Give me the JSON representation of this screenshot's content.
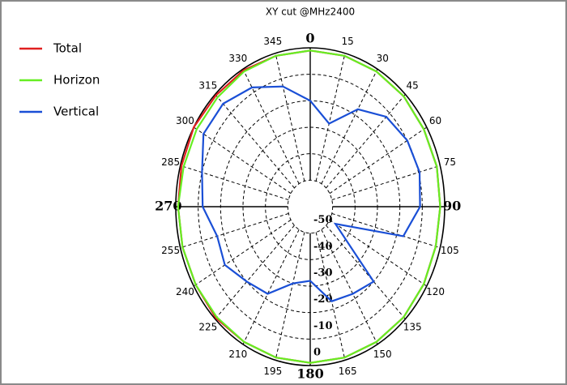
{
  "chart_data": {
    "type": "polar",
    "title": "XY cut @MHz2400",
    "theta": [
      0,
      15,
      30,
      45,
      60,
      75,
      90,
      105,
      120,
      135,
      150,
      165,
      180,
      195,
      210,
      225,
      240,
      255,
      270,
      285,
      300,
      315,
      330,
      345
    ],
    "rlim": [
      -60,
      0
    ],
    "rticks": [
      -50,
      -40,
      -30,
      -20,
      -10,
      0
    ],
    "grid": true,
    "legend": "top-left",
    "series": [
      {
        "name": "Total",
        "color": "#e02020",
        "values": [
          -1,
          -1,
          -1,
          -1,
          -1.5,
          -1.5,
          -2,
          -2,
          -1.5,
          -1,
          -1,
          -1,
          -1,
          -1,
          -1,
          -0.5,
          -1,
          -1,
          -1,
          -0.5,
          0,
          -0.5,
          -0.5,
          -1
        ]
      },
      {
        "name": "Horizon",
        "color": "#66ee22",
        "values": [
          -1,
          -1,
          -1,
          -1,
          -1.5,
          -1.5,
          -2,
          -2,
          -1.5,
          -1,
          -1,
          -1,
          -1,
          -1,
          -1,
          -1,
          -1,
          -1,
          -1,
          -1.5,
          -1.5,
          -1.5,
          -1,
          -1
        ]
      },
      {
        "name": "Vertical",
        "color": "#1a4fd6",
        "values": [
          -20,
          -27.5,
          -17.5,
          -12,
          -10,
          -9.5,
          -11,
          -17,
          -47,
          -20,
          -22,
          -23,
          -32,
          -30,
          -22,
          -20,
          -16,
          -17,
          -12,
          -10,
          -5,
          -5,
          -8,
          -13
        ]
      }
    ]
  }
}
